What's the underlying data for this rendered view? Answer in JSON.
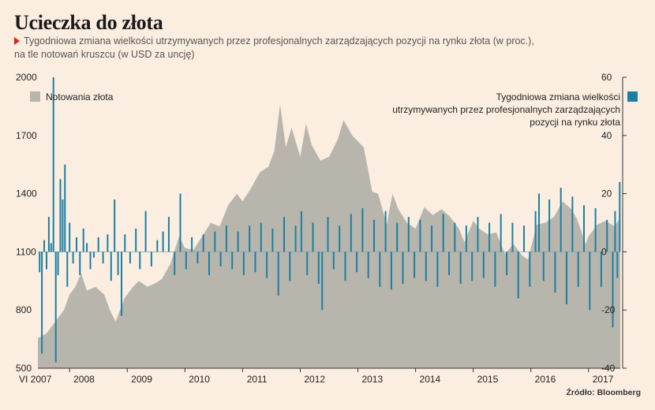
{
  "title": "Ucieczka do złota",
  "subtitle_line1": "Tygodniowa zmiana wielkości utrzymywanych przez profesjonalnych zarządzających pozycji na rynku złota (w proc.),",
  "subtitle_line2": "na tle notowań kruszcu (w USD za uncję)",
  "source": "Źródło: Bloomberg",
  "colors": {
    "background": "#fbeee0",
    "area": "#b8b5ac",
    "bars": "#1b7fa3",
    "axis": "#333333"
  },
  "chart_data": {
    "type": "area+bar",
    "x_labels": [
      "VI 2007",
      "2008",
      "2009",
      "2010",
      "2011",
      "2012",
      "2013",
      "2014",
      "2015",
      "2016",
      "2017"
    ],
    "x_range": [
      2007.45,
      2017.55
    ],
    "left_axis": {
      "ticks": [
        500,
        800,
        1100,
        1400,
        1700,
        2000
      ],
      "range": [
        500,
        2000
      ]
    },
    "right_axis": {
      "ticks": [
        -40,
        -20,
        0,
        20,
        40,
        60
      ],
      "range": [
        -40,
        60
      ]
    },
    "series": [
      {
        "name": "Notowania złota",
        "kind": "area",
        "axis": "left",
        "points": [
          [
            2007.45,
            655
          ],
          [
            2007.6,
            680
          ],
          [
            2007.75,
            740
          ],
          [
            2007.9,
            800
          ],
          [
            2008.0,
            880
          ],
          [
            2008.1,
            920
          ],
          [
            2008.2,
            990
          ],
          [
            2008.3,
            900
          ],
          [
            2008.45,
            920
          ],
          [
            2008.6,
            880
          ],
          [
            2008.7,
            800
          ],
          [
            2008.8,
            740
          ],
          [
            2008.95,
            860
          ],
          [
            2009.1,
            920
          ],
          [
            2009.2,
            950
          ],
          [
            2009.35,
            920
          ],
          [
            2009.5,
            940
          ],
          [
            2009.6,
            960
          ],
          [
            2009.75,
            1040
          ],
          [
            2009.9,
            1180
          ],
          [
            2010.0,
            1120
          ],
          [
            2010.15,
            1110
          ],
          [
            2010.3,
            1180
          ],
          [
            2010.45,
            1250
          ],
          [
            2010.6,
            1230
          ],
          [
            2010.75,
            1340
          ],
          [
            2010.9,
            1400
          ],
          [
            2011.0,
            1360
          ],
          [
            2011.15,
            1430
          ],
          [
            2011.3,
            1510
          ],
          [
            2011.45,
            1540
          ],
          [
            2011.55,
            1620
          ],
          [
            2011.65,
            1860
          ],
          [
            2011.75,
            1640
          ],
          [
            2011.85,
            1740
          ],
          [
            2012.0,
            1590
          ],
          [
            2012.1,
            1760
          ],
          [
            2012.2,
            1650
          ],
          [
            2012.35,
            1570
          ],
          [
            2012.5,
            1590
          ],
          [
            2012.65,
            1680
          ],
          [
            2012.75,
            1780
          ],
          [
            2012.9,
            1700
          ],
          [
            2013.0,
            1670
          ],
          [
            2013.1,
            1640
          ],
          [
            2013.25,
            1410
          ],
          [
            2013.35,
            1400
          ],
          [
            2013.5,
            1240
          ],
          [
            2013.6,
            1400
          ],
          [
            2013.7,
            1320
          ],
          [
            2013.85,
            1250
          ],
          [
            2014.0,
            1220
          ],
          [
            2014.15,
            1330
          ],
          [
            2014.3,
            1290
          ],
          [
            2014.45,
            1320
          ],
          [
            2014.6,
            1280
          ],
          [
            2014.75,
            1220
          ],
          [
            2014.85,
            1150
          ],
          [
            2015.0,
            1260
          ],
          [
            2015.1,
            1220
          ],
          [
            2015.25,
            1190
          ],
          [
            2015.4,
            1200
          ],
          [
            2015.55,
            1090
          ],
          [
            2015.7,
            1140
          ],
          [
            2015.85,
            1080
          ],
          [
            2015.95,
            1060
          ],
          [
            2016.1,
            1240
          ],
          [
            2016.25,
            1250
          ],
          [
            2016.4,
            1280
          ],
          [
            2016.55,
            1360
          ],
          [
            2016.7,
            1320
          ],
          [
            2016.8,
            1270
          ],
          [
            2016.95,
            1140
          ],
          [
            2017.0,
            1180
          ],
          [
            2017.15,
            1240
          ],
          [
            2017.3,
            1260
          ],
          [
            2017.45,
            1230
          ],
          [
            2017.55,
            1280
          ]
        ]
      },
      {
        "name": "Tygodniowa zmiana wielkości utrzymywanych przez profesjonalnych zarządzających pozycji na rynku złota",
        "kind": "bar",
        "axis": "right",
        "points": [
          [
            2007.48,
            -7
          ],
          [
            2007.52,
            -35
          ],
          [
            2007.56,
            4
          ],
          [
            2007.6,
            -6
          ],
          [
            2007.64,
            12
          ],
          [
            2007.68,
            3
          ],
          [
            2007.72,
            60
          ],
          [
            2007.76,
            -38
          ],
          [
            2007.8,
            -8
          ],
          [
            2007.84,
            25
          ],
          [
            2007.88,
            18
          ],
          [
            2007.92,
            30
          ],
          [
            2007.96,
            -12
          ],
          [
            2008.0,
            10
          ],
          [
            2008.06,
            -4
          ],
          [
            2008.12,
            5
          ],
          [
            2008.18,
            -8
          ],
          [
            2008.24,
            8
          ],
          [
            2008.3,
            3
          ],
          [
            2008.36,
            -6
          ],
          [
            2008.42,
            -2
          ],
          [
            2008.5,
            5
          ],
          [
            2008.58,
            -4
          ],
          [
            2008.66,
            6
          ],
          [
            2008.72,
            -10
          ],
          [
            2008.78,
            18
          ],
          [
            2008.84,
            -8
          ],
          [
            2008.9,
            -22
          ],
          [
            2008.96,
            6
          ],
          [
            2009.05,
            -4
          ],
          [
            2009.15,
            8
          ],
          [
            2009.22,
            -6
          ],
          [
            2009.32,
            14
          ],
          [
            2009.42,
            -5
          ],
          [
            2009.52,
            4
          ],
          [
            2009.62,
            7
          ],
          [
            2009.72,
            12
          ],
          [
            2009.82,
            -8
          ],
          [
            2009.92,
            20
          ],
          [
            2010.02,
            -6
          ],
          [
            2010.12,
            5
          ],
          [
            2010.22,
            -4
          ],
          [
            2010.32,
            6
          ],
          [
            2010.42,
            -8
          ],
          [
            2010.52,
            7
          ],
          [
            2010.62,
            -5
          ],
          [
            2010.72,
            9
          ],
          [
            2010.82,
            -6
          ],
          [
            2010.92,
            7
          ],
          [
            2011.02,
            -8
          ],
          [
            2011.12,
            9
          ],
          [
            2011.22,
            -7
          ],
          [
            2011.32,
            10
          ],
          [
            2011.42,
            -9
          ],
          [
            2011.52,
            8
          ],
          [
            2011.62,
            -15
          ],
          [
            2011.72,
            12
          ],
          [
            2011.82,
            -10
          ],
          [
            2011.92,
            9
          ],
          [
            2012.02,
            14
          ],
          [
            2012.12,
            -8
          ],
          [
            2012.22,
            10
          ],
          [
            2012.32,
            -11
          ],
          [
            2012.38,
            -20
          ],
          [
            2012.48,
            12
          ],
          [
            2012.58,
            -6
          ],
          [
            2012.68,
            9
          ],
          [
            2012.78,
            -10
          ],
          [
            2012.88,
            13
          ],
          [
            2012.98,
            -7
          ],
          [
            2013.08,
            15
          ],
          [
            2013.18,
            -9
          ],
          [
            2013.28,
            11
          ],
          [
            2013.38,
            -12
          ],
          [
            2013.48,
            14
          ],
          [
            2013.58,
            -13
          ],
          [
            2013.68,
            10
          ],
          [
            2013.78,
            -11
          ],
          [
            2013.88,
            12
          ],
          [
            2013.98,
            -9
          ],
          [
            2014.08,
            11
          ],
          [
            2014.18,
            -10
          ],
          [
            2014.28,
            9
          ],
          [
            2014.38,
            -12
          ],
          [
            2014.48,
            13
          ],
          [
            2014.58,
            -8
          ],
          [
            2014.68,
            10
          ],
          [
            2014.78,
            -11
          ],
          [
            2014.88,
            9
          ],
          [
            2014.98,
            -10
          ],
          [
            2015.08,
            12
          ],
          [
            2015.18,
            -9
          ],
          [
            2015.28,
            10
          ],
          [
            2015.38,
            -12
          ],
          [
            2015.48,
            13
          ],
          [
            2015.58,
            -8
          ],
          [
            2015.68,
            10
          ],
          [
            2015.78,
            -16
          ],
          [
            2015.88,
            9
          ],
          [
            2015.98,
            -12
          ],
          [
            2016.08,
            14
          ],
          [
            2016.14,
            20
          ],
          [
            2016.22,
            -10
          ],
          [
            2016.32,
            18
          ],
          [
            2016.42,
            -14
          ],
          [
            2016.52,
            22
          ],
          [
            2016.62,
            -18
          ],
          [
            2016.72,
            19
          ],
          [
            2016.82,
            -12
          ],
          [
            2016.92,
            16
          ],
          [
            2017.02,
            -20
          ],
          [
            2017.12,
            15
          ],
          [
            2017.22,
            -12
          ],
          [
            2017.32,
            11
          ],
          [
            2017.42,
            -26
          ],
          [
            2017.46,
            14
          ],
          [
            2017.5,
            -9
          ],
          [
            2017.54,
            24
          ]
        ]
      }
    ]
  }
}
